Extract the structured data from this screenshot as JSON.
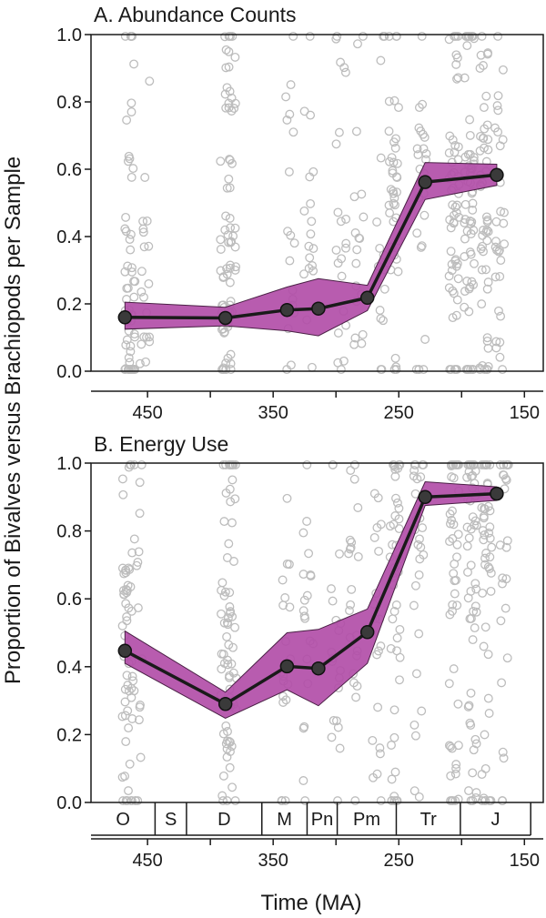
{
  "y_axis_title": "Proportion of Bivalves versus Brachiopods per Sample",
  "x_axis_title": "Time (MA)",
  "chart_data": [
    {
      "type": "line",
      "title": "A. Abundance Counts",
      "xlim": [
        495,
        135
      ],
      "ylim": [
        0,
        1
      ],
      "xticks": [
        450,
        350,
        250,
        150
      ],
      "xtick_labels": [
        "450",
        "350",
        "250",
        "150"
      ],
      "yticks": [
        0,
        0.2,
        0.4,
        0.6,
        0.8,
        1.0
      ],
      "ytick_labels": [
        "0.0",
        "0.2",
        "0.4",
        "0.6",
        "0.8",
        "1.0"
      ],
      "series": [
        {
          "name": "mean",
          "x": [
            468,
            388,
            339,
            314,
            275,
            229,
            172
          ],
          "y": [
            0.16,
            0.158,
            0.182,
            0.186,
            0.218,
            0.562,
            0.583
          ],
          "lower": [
            0.125,
            0.135,
            0.12,
            0.105,
            0.18,
            0.51,
            0.552
          ],
          "upper": [
            0.205,
            0.19,
            0.25,
            0.275,
            0.255,
            0.62,
            0.615
          ]
        }
      ]
    },
    {
      "type": "line",
      "title": "B. Energy Use",
      "xlim": [
        495,
        135
      ],
      "ylim": [
        0,
        1
      ],
      "xticks": [
        450,
        350,
        250,
        150
      ],
      "xtick_labels": [
        "450",
        "350",
        "250",
        "150"
      ],
      "yticks": [
        0,
        0.2,
        0.4,
        0.6,
        0.8,
        1.0
      ],
      "ytick_labels": [
        "0.0",
        "0.2",
        "0.4",
        "0.6",
        "0.8",
        "1.0"
      ],
      "series": [
        {
          "name": "mean",
          "x": [
            468,
            388,
            339,
            314,
            275,
            229,
            172
          ],
          "y": [
            0.447,
            0.29,
            0.401,
            0.395,
            0.502,
            0.9,
            0.91
          ],
          "lower": [
            0.41,
            0.248,
            0.332,
            0.285,
            0.41,
            0.875,
            0.89
          ],
          "upper": [
            0.505,
            0.325,
            0.5,
            0.51,
            0.57,
            0.945,
            0.93
          ]
        }
      ],
      "periods": [
        {
          "label": "O",
          "start": 495,
          "end": 444
        },
        {
          "label": "S",
          "start": 444,
          "end": 419
        },
        {
          "label": "D",
          "start": 419,
          "end": 359
        },
        {
          "label": "M",
          "start": 359,
          "end": 323
        },
        {
          "label": "Pn",
          "start": 323,
          "end": 299
        },
        {
          "label": "Pm",
          "start": 299,
          "end": 252
        },
        {
          "label": "Tr",
          "start": 252,
          "end": 201
        },
        {
          "label": "J",
          "start": 201,
          "end": 145
        }
      ]
    }
  ]
}
